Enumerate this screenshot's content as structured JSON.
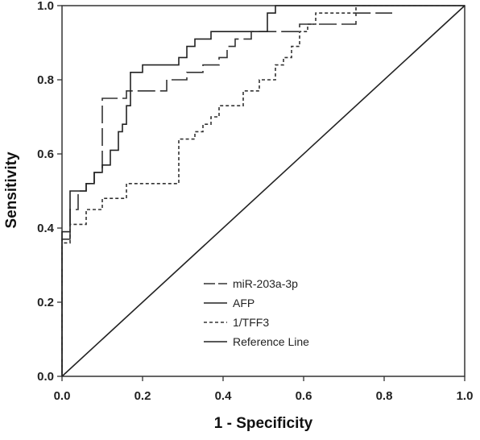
{
  "chart_data": {
    "type": "line",
    "xlabel": "1 - Specificity",
    "ylabel": "Sensitivity",
    "xlim": [
      0,
      1
    ],
    "ylim": [
      0,
      1
    ],
    "x_ticks": [
      "0.0",
      "0.2",
      "0.4",
      "0.6",
      "0.8",
      "1.0"
    ],
    "y_ticks": [
      "0.0",
      "0.2",
      "0.4",
      "0.6",
      "0.8",
      "1.0"
    ],
    "grid": false,
    "legend_position": "bottom-left inside",
    "series": [
      {
        "name": "miR-203a-3p",
        "style": "long-dash",
        "color": "#333333",
        "x": [
          0.0,
          0.0,
          0.02,
          0.02,
          0.04,
          0.04,
          0.06,
          0.06,
          0.08,
          0.08,
          0.1,
          0.1,
          0.12,
          0.12,
          0.16,
          0.16,
          0.26,
          0.26,
          0.31,
          0.31,
          0.35,
          0.35,
          0.39,
          0.39,
          0.41,
          0.41,
          0.43,
          0.43,
          0.47,
          0.47,
          0.53,
          0.53,
          0.59,
          0.59,
          0.63,
          0.63,
          0.73,
          0.73,
          0.76,
          0.76,
          0.82
        ],
        "y": [
          0.0,
          0.37,
          0.37,
          0.45,
          0.45,
          0.5,
          0.5,
          0.52,
          0.52,
          0.55,
          0.55,
          0.75,
          0.75,
          0.75,
          0.75,
          0.77,
          0.77,
          0.8,
          0.8,
          0.82,
          0.82,
          0.84,
          0.84,
          0.86,
          0.86,
          0.89,
          0.89,
          0.91,
          0.91,
          0.93,
          0.93,
          0.93,
          0.93,
          0.95,
          0.95,
          0.95,
          0.95,
          0.98,
          0.98,
          0.98,
          0.98
        ]
      },
      {
        "name": "AFP",
        "style": "solid",
        "color": "#222222",
        "x": [
          0.0,
          0.0,
          0.02,
          0.02,
          0.06,
          0.06,
          0.08,
          0.08,
          0.1,
          0.1,
          0.12,
          0.12,
          0.14,
          0.14,
          0.15,
          0.15,
          0.16,
          0.16,
          0.17,
          0.17,
          0.2,
          0.2,
          0.29,
          0.29,
          0.31,
          0.31,
          0.33,
          0.33,
          0.35,
          0.35,
          0.37,
          0.37,
          0.51,
          0.51,
          0.53,
          0.53,
          1.0
        ],
        "y": [
          0.0,
          0.39,
          0.39,
          0.5,
          0.5,
          0.52,
          0.52,
          0.55,
          0.55,
          0.57,
          0.57,
          0.61,
          0.61,
          0.66,
          0.66,
          0.68,
          0.68,
          0.73,
          0.73,
          0.82,
          0.82,
          0.84,
          0.84,
          0.86,
          0.86,
          0.89,
          0.89,
          0.91,
          0.91,
          0.91,
          0.91,
          0.93,
          0.93,
          0.98,
          0.98,
          1.0,
          1.0
        ]
      },
      {
        "name": "1/TFF3",
        "style": "dotted",
        "color": "#333333",
        "x": [
          0.0,
          0.0,
          0.02,
          0.02,
          0.06,
          0.06,
          0.1,
          0.1,
          0.12,
          0.12,
          0.16,
          0.16,
          0.2,
          0.2,
          0.29,
          0.29,
          0.31,
          0.31,
          0.33,
          0.33,
          0.35,
          0.35,
          0.37,
          0.37,
          0.39,
          0.39,
          0.43,
          0.43,
          0.45,
          0.45,
          0.49,
          0.49,
          0.53,
          0.53,
          0.55,
          0.55,
          0.57,
          0.57,
          0.59,
          0.59,
          0.61,
          0.61,
          0.63,
          0.63,
          0.65,
          0.65,
          0.71,
          0.71,
          0.73,
          0.73,
          1.0
        ],
        "y": [
          0.0,
          0.36,
          0.36,
          0.41,
          0.41,
          0.45,
          0.45,
          0.48,
          0.48,
          0.48,
          0.48,
          0.52,
          0.52,
          0.52,
          0.52,
          0.64,
          0.64,
          0.64,
          0.64,
          0.66,
          0.66,
          0.68,
          0.68,
          0.7,
          0.7,
          0.73,
          0.73,
          0.73,
          0.73,
          0.77,
          0.77,
          0.8,
          0.8,
          0.84,
          0.84,
          0.86,
          0.86,
          0.89,
          0.89,
          0.93,
          0.93,
          0.95,
          0.95,
          0.98,
          0.98,
          0.98,
          0.98,
          0.98,
          0.98,
          1.0,
          1.0
        ]
      },
      {
        "name": "Reference Line",
        "style": "solid",
        "color": "#222222",
        "x": [
          0.0,
          1.0
        ],
        "y": [
          0.0,
          1.0
        ]
      }
    ]
  }
}
